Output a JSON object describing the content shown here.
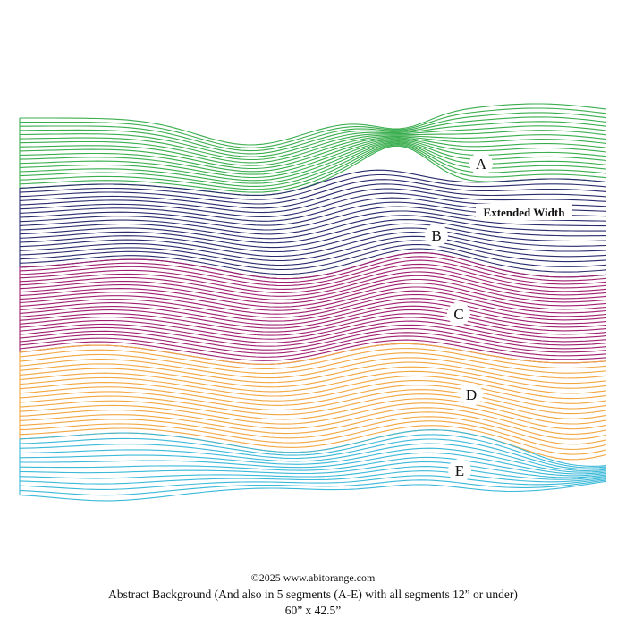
{
  "pattern": {
    "segments": [
      {
        "label": "A",
        "color": "#3aae4e"
      },
      {
        "label": "B",
        "color": "#2b2c6e"
      },
      {
        "label": "C",
        "color": "#a02070"
      },
      {
        "label": "D",
        "color": "#f2a640"
      },
      {
        "label": "E",
        "color": "#3bb9d8"
      }
    ],
    "extension_label": "Extended Width"
  },
  "footer": {
    "copyright": "©2025 www.abitorange.com",
    "title": "Abstract Background (And also in 5 segments (A-E) with all segments 12” or under)",
    "dimensions": "60” x 42.5”"
  }
}
